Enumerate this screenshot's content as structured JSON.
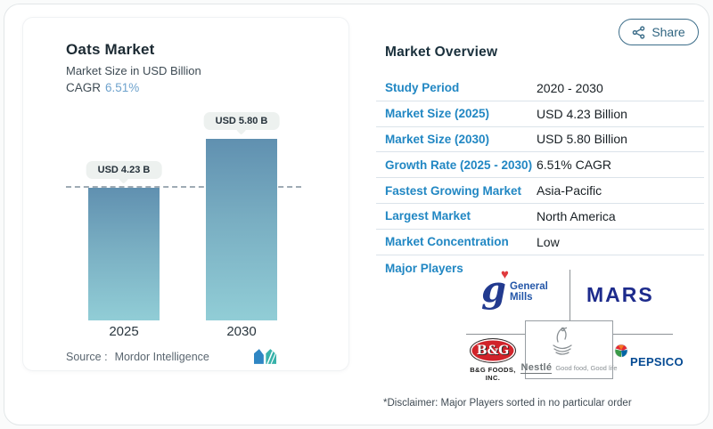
{
  "share": {
    "label": "Share"
  },
  "chart_panel": {
    "title": "Oats Market",
    "subtitle": "Market Size in USD Billion",
    "cagr_label": "CAGR",
    "cagr_value": "6.51%",
    "source_label": "Source :",
    "source_value": "Mordor Intelligence"
  },
  "chart_data": {
    "type": "bar",
    "title": "Oats Market",
    "subtitle": "Market Size in USD Billion",
    "unit": "USD Billion",
    "categories": [
      "2025",
      "2030"
    ],
    "values": [
      4.23,
      5.8
    ],
    "bar_labels": [
      "USD 4.23 B",
      "USD 5.80 B"
    ],
    "cagr": "6.51%",
    "reference_line": 4.23,
    "ylim": [
      0,
      5.8
    ],
    "grid": false,
    "legend": false,
    "bar_gradient": [
      "#6090b0",
      "#91cdd6"
    ]
  },
  "overview": {
    "heading": "Market Overview",
    "rows": [
      {
        "label": "Study Period",
        "value": "2020 - 2030"
      },
      {
        "label": "Market Size (2025)",
        "value": "USD 4.23 Billion"
      },
      {
        "label": "Market Size (2030)",
        "value": "USD 5.80 Billion"
      },
      {
        "label": "Growth Rate (2025 - 2030)",
        "value": "6.51% CAGR"
      },
      {
        "label": "Fastest Growing Market",
        "value": "Asia-Pacific"
      },
      {
        "label": "Largest Market",
        "value": "North America"
      },
      {
        "label": "Market Concentration",
        "value": "Low"
      }
    ],
    "major_players_label": "Major Players",
    "disclaimer": "*Disclaimer: Major Players sorted in no particular order"
  },
  "logos": {
    "general_mills": {
      "mark": "g",
      "heart": "♥",
      "line1": "General",
      "line2": "Mills"
    },
    "mars": "MARS",
    "bg_foods": {
      "mark": "B&G",
      "caption": "B&G FOODS, INC."
    },
    "nestle": {
      "name": "Nestlé",
      "tagline": "Good food, Good life"
    },
    "pepsico": "PEPSICO"
  },
  "colors": {
    "label_blue": "#2187c3",
    "cagr_blue": "#6fa3cd",
    "heading_dark": "#1a303c",
    "share_blue": "#2f6480",
    "separator": "#dbe3ea",
    "pill_bg": "#edf1ef",
    "mordor_blue": "#2f86c3",
    "mordor_teal": "#38b2aa"
  }
}
